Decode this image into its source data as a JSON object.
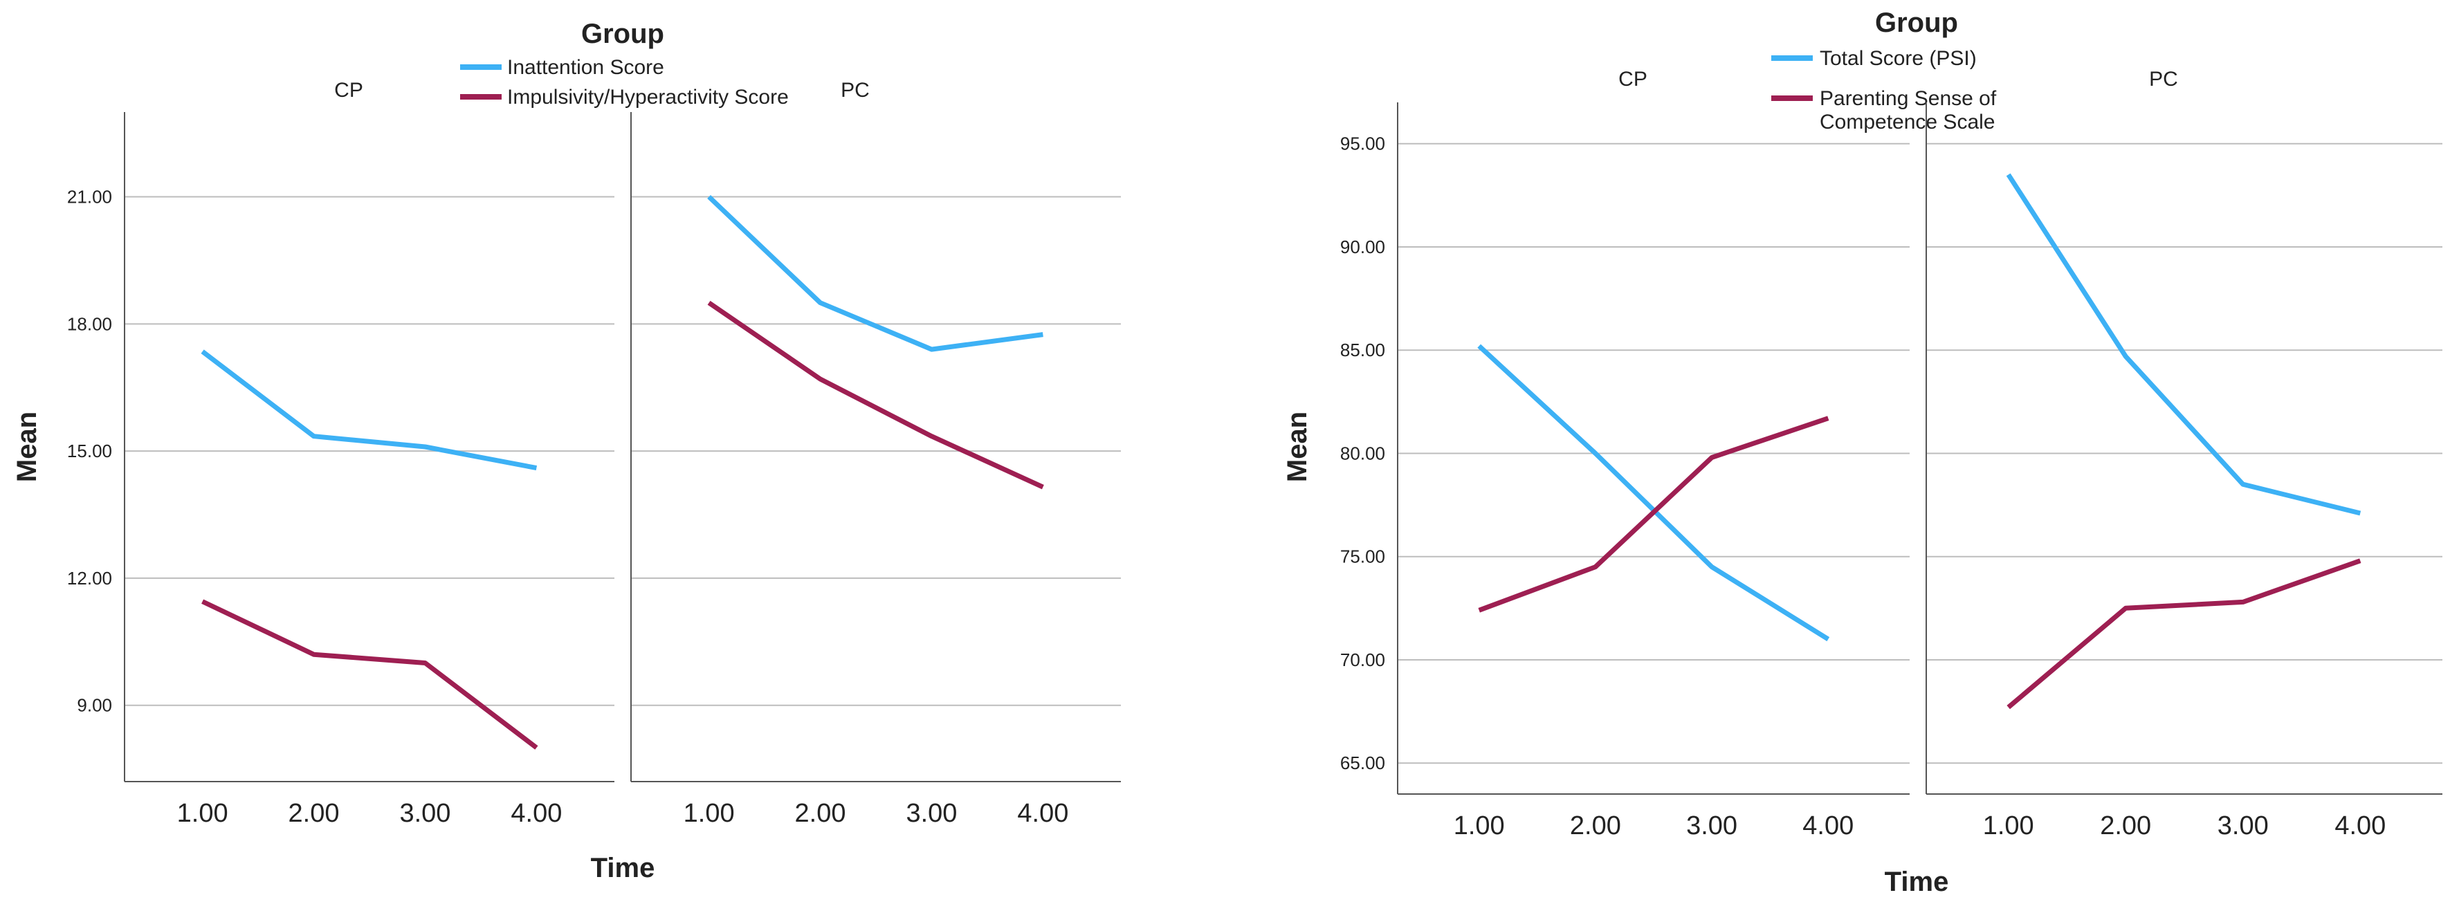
{
  "chart_data": [
    {
      "type": "line",
      "title": "Group",
      "panels": [
        "CP",
        "PC"
      ],
      "xlabel": "Time",
      "ylabel": "Mean",
      "x": [
        "1.00",
        "2.00",
        "3.00",
        "4.00"
      ],
      "y_ticks": [
        "9.00",
        "12.00",
        "15.00",
        "18.00",
        "21.00"
      ],
      "ylim": [
        7.2,
        23.0
      ],
      "xlim": [
        0.3,
        4.7
      ],
      "grid": true,
      "legend_position": "top-center",
      "series": [
        {
          "name": "Inattention Score",
          "color": "#3DB1F5",
          "values": {
            "CP": [
              17.35,
              15.35,
              15.1,
              14.6
            ],
            "PC": [
              21.0,
              18.5,
              17.4,
              17.75
            ]
          }
        },
        {
          "name": "Impulsivity/Hyperactivity Score",
          "color": "#9E1F52",
          "values": {
            "CP": [
              11.45,
              10.2,
              10.0,
              8.0
            ],
            "PC": [
              18.5,
              16.7,
              15.35,
              14.15
            ]
          }
        }
      ]
    },
    {
      "type": "line",
      "title": "Group",
      "panels": [
        "CP",
        "PC"
      ],
      "xlabel": "Time",
      "ylabel": "Mean",
      "x": [
        "1.00",
        "2.00",
        "3.00",
        "4.00"
      ],
      "y_ticks": [
        "65.00",
        "70.00",
        "75.00",
        "80.00",
        "85.00",
        "90.00",
        "95.00"
      ],
      "ylim": [
        63.5,
        97.0
      ],
      "xlim": [
        0.3,
        4.7
      ],
      "grid": true,
      "legend_position": "top-center",
      "series": [
        {
          "name": "Total Score (PSI)",
          "color": "#3DB1F5",
          "values": {
            "CP": [
              85.2,
              80.0,
              74.5,
              71.0
            ],
            "PC": [
              93.5,
              84.7,
              78.5,
              77.1
            ]
          }
        },
        {
          "name": "Parenting Sense of Competence Scale",
          "name_lines": [
            "Parenting Sense of",
            "Competence Scale"
          ],
          "color": "#9E1F52",
          "values": {
            "CP": [
              72.4,
              74.5,
              79.8,
              81.7
            ],
            "PC": [
              67.7,
              72.5,
              72.8,
              74.8
            ]
          }
        }
      ]
    }
  ]
}
